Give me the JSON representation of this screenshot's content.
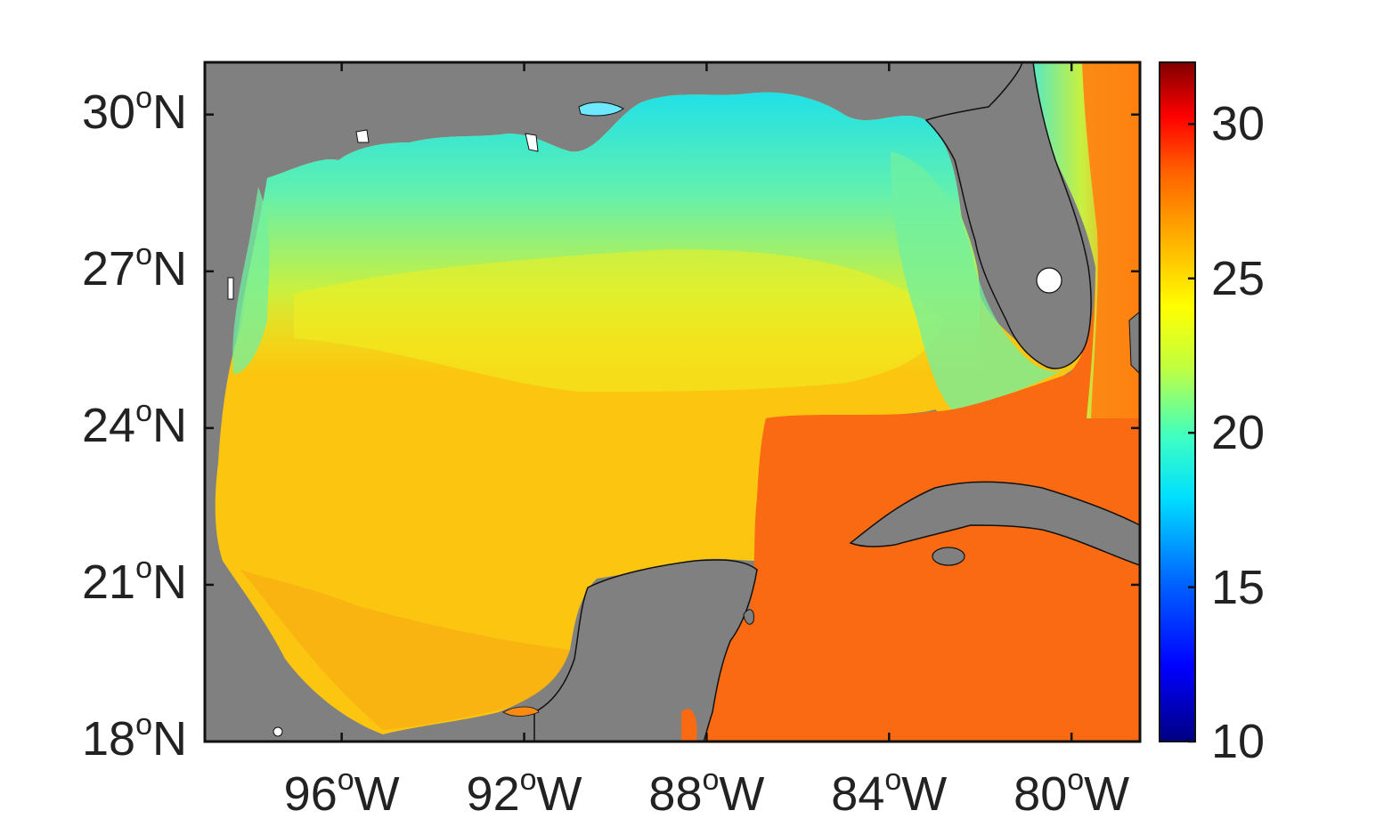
{
  "map": {
    "region": "Gulf of Mexico",
    "extent": {
      "lon_min": -99,
      "lon_max": -78.5,
      "lat_min": 18,
      "lat_max": 31
    },
    "land_color": "#808080",
    "ocean_colormap": "jet",
    "lat_ticks": [
      {
        "value": 30,
        "text": "30",
        "deg": "o",
        "hemi": "N"
      },
      {
        "value": 27,
        "text": "27",
        "deg": "o",
        "hemi": "N"
      },
      {
        "value": 24,
        "text": "24",
        "deg": "o",
        "hemi": "N"
      },
      {
        "value": 21,
        "text": "21",
        "deg": "o",
        "hemi": "N"
      },
      {
        "value": 18,
        "text": "18",
        "deg": "o",
        "hemi": "N"
      }
    ],
    "lon_ticks": [
      {
        "value": -96,
        "text": "96",
        "deg": "o",
        "hemi": "W"
      },
      {
        "value": -92,
        "text": "92",
        "deg": "o",
        "hemi": "W"
      },
      {
        "value": -88,
        "text": "88",
        "deg": "o",
        "hemi": "W"
      },
      {
        "value": -84,
        "text": "84",
        "deg": "o",
        "hemi": "W"
      },
      {
        "value": -80,
        "text": "80",
        "deg": "o",
        "hemi": "W"
      }
    ]
  },
  "colorbar": {
    "min": 10,
    "max": 32,
    "ticks": [
      {
        "value": 30,
        "text": "30"
      },
      {
        "value": 25,
        "text": "25"
      },
      {
        "value": 20,
        "text": "20"
      },
      {
        "value": 15,
        "text": "15"
      },
      {
        "value": 10,
        "text": "10"
      }
    ]
  }
}
